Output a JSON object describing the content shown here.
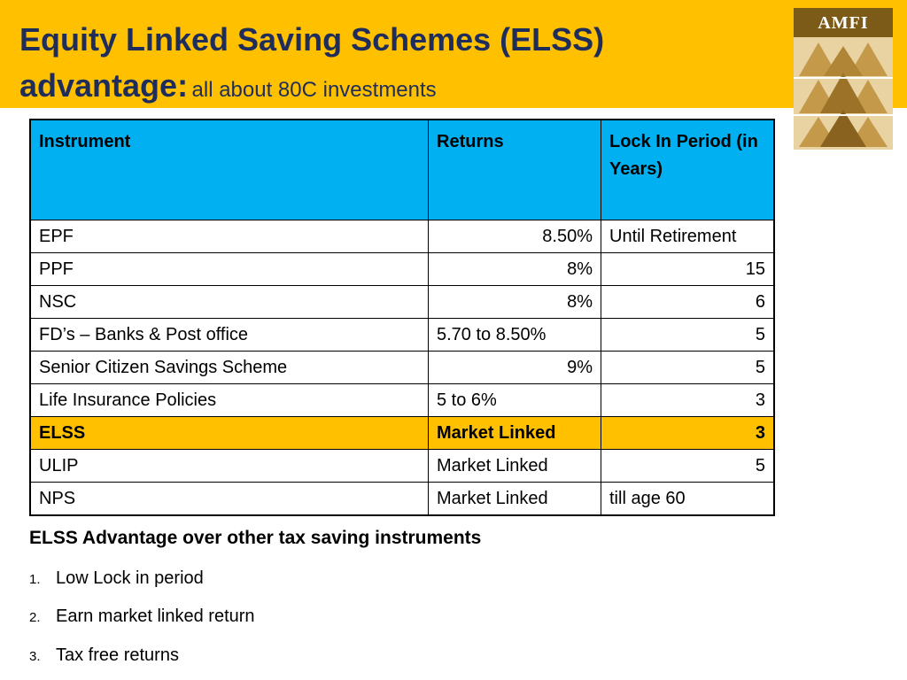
{
  "header": {
    "title_line1": "Equity Linked Saving Schemes (ELSS)",
    "title_bold": "advantage:",
    "title_sub": "all about 80C investments"
  },
  "logo": {
    "text": "AMFI"
  },
  "table": {
    "headers": [
      "Instrument",
      "Returns",
      "Lock In Period (in Years)"
    ],
    "rows": [
      [
        "EPF",
        "8.50%",
        "Until Retirement"
      ],
      [
        "PPF",
        "8%",
        "15"
      ],
      [
        "NSC",
        "8%",
        "6"
      ],
      [
        "FD’s – Banks & Post office",
        "5.70 to 8.50%",
        "5"
      ],
      [
        "Senior Citizen Savings Scheme",
        "9%",
        "5"
      ],
      [
        "Life Insurance Policies",
        "5 to 6%",
        "3"
      ],
      [
        "ELSS",
        "Market Linked",
        "3"
      ],
      [
        "ULIP",
        "Market Linked",
        "5"
      ],
      [
        "NPS",
        "Market Linked",
        "till age 60"
      ]
    ],
    "highlight_color": "#ffc000",
    "header_color": "#00b0f0"
  },
  "advantages": {
    "heading": "ELSS Advantage over other tax saving instruments",
    "items": [
      {
        "num": "1.",
        "text": "Low Lock in period"
      },
      {
        "num": "2.",
        "text": "Earn market linked return"
      },
      {
        "num": "3.",
        "text": "Tax free returns"
      }
    ]
  }
}
